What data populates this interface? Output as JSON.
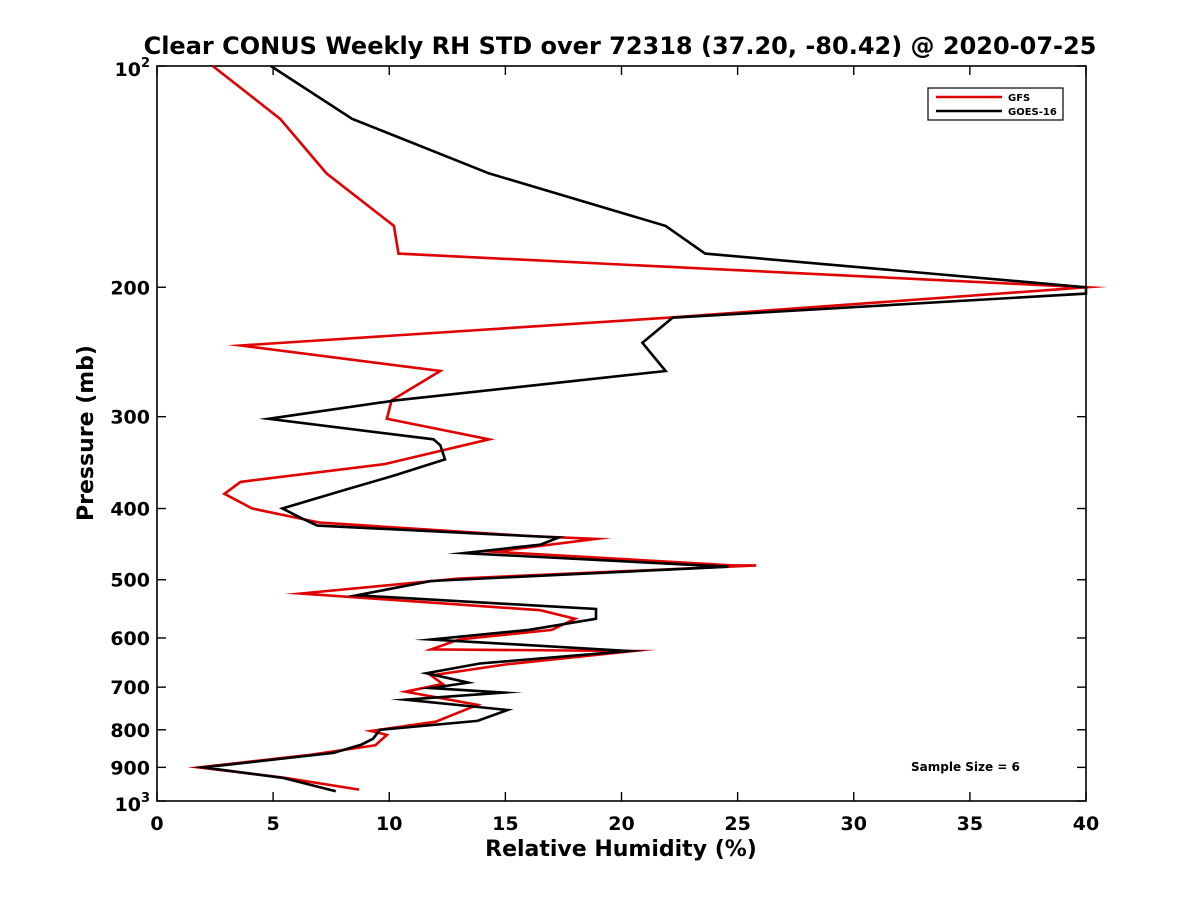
{
  "chart_data": {
    "type": "line",
    "title": "Clear CONUS Weekly RH STD over 72318 (37.20, -80.42) @ 2020-07-25",
    "xlabel": "Relative Humidity (%)",
    "ylabel": "Pressure (mb)",
    "xlim": [
      0,
      40
    ],
    "ylim": [
      100,
      1000
    ],
    "y_scale": "log",
    "y_reversed": true,
    "x_ticks": [
      "0",
      "5",
      "10",
      "15",
      "20",
      "25",
      "30",
      "35",
      "40"
    ],
    "y_ticks": [
      {
        "value": 100,
        "label": "10",
        "exp": "2"
      },
      {
        "value": 200,
        "label": "200"
      },
      {
        "value": 300,
        "label": "300"
      },
      {
        "value": 400,
        "label": "400"
      },
      {
        "value": 500,
        "label": "500"
      },
      {
        "value": 600,
        "label": "600"
      },
      {
        "value": 700,
        "label": "700"
      },
      {
        "value": 800,
        "label": "800"
      },
      {
        "value": 900,
        "label": "900"
      },
      {
        "value": 1000,
        "label": "10",
        "exp": "3"
      }
    ],
    "legend_position": "top-right",
    "grid": false,
    "annotation": "Sample Size = 6",
    "series": [
      {
        "name": "GFS",
        "color": "#e00000",
        "points": [
          [
            2.4,
            100
          ],
          [
            5.3,
            118
          ],
          [
            7.3,
            140
          ],
          [
            10.2,
            165
          ],
          [
            10.4,
            180
          ],
          [
            40,
            200
          ],
          [
            22,
            220
          ],
          [
            3.6,
            240
          ],
          [
            12.2,
            260
          ],
          [
            10.1,
            285
          ],
          [
            9.9,
            302
          ],
          [
            14.3,
            322
          ],
          [
            9.8,
            348
          ],
          [
            3.6,
            368
          ],
          [
            2.9,
            382
          ],
          [
            4.1,
            400
          ],
          [
            7.0,
            418
          ],
          [
            16.0,
            436
          ],
          [
            18.9,
            440
          ],
          [
            14.5,
            458
          ],
          [
            24.8,
            478
          ],
          [
            25.8,
            478
          ],
          [
            13.0,
            498
          ],
          [
            6.2,
            522
          ],
          [
            16.5,
            550
          ],
          [
            18.0,
            565
          ],
          [
            17.0,
            585
          ],
          [
            13.0,
            603
          ],
          [
            11.8,
            622
          ],
          [
            20.5,
            625
          ],
          [
            15.0,
            652
          ],
          [
            11.8,
            675
          ],
          [
            12.3,
            693
          ],
          [
            10.7,
            710
          ],
          [
            13.8,
            740
          ],
          [
            12.0,
            780
          ],
          [
            9.2,
            803
          ],
          [
            9.9,
            813
          ],
          [
            9.4,
            840
          ],
          [
            6.5,
            866
          ],
          [
            1.8,
            900
          ],
          [
            5.5,
            930
          ],
          [
            8.7,
            965
          ]
        ]
      },
      {
        "name": "GOES-16",
        "color": "#000000",
        "points": [
          [
            4.9,
            100
          ],
          [
            8.4,
            118
          ],
          [
            14.3,
            140
          ],
          [
            21.9,
            165
          ],
          [
            23.6,
            180
          ],
          [
            40,
            200
          ],
          [
            40,
            204
          ],
          [
            22.2,
            220
          ],
          [
            20.9,
            238
          ],
          [
            21.9,
            260
          ],
          [
            10.3,
            285
          ],
          [
            4.8,
            302
          ],
          [
            11.9,
            322
          ],
          [
            12.2,
            328
          ],
          [
            12.4,
            343
          ],
          [
            10.3,
            360
          ],
          [
            8.0,
            378
          ],
          [
            5.4,
            400
          ],
          [
            6.2,
            412
          ],
          [
            6.9,
            422
          ],
          [
            17.3,
            438
          ],
          [
            16.5,
            448
          ],
          [
            13.2,
            460
          ],
          [
            23.5,
            478
          ],
          [
            24.6,
            480
          ],
          [
            11.8,
            502
          ],
          [
            8.6,
            525
          ],
          [
            18.9,
            548
          ],
          [
            18.9,
            565
          ],
          [
            16.0,
            585
          ],
          [
            11.8,
            603
          ],
          [
            20.3,
            625
          ],
          [
            13.9,
            650
          ],
          [
            11.6,
            670
          ],
          [
            13.4,
            690
          ],
          [
            11.8,
            702
          ],
          [
            14.9,
            712
          ],
          [
            10.7,
            728
          ],
          [
            15.1,
            752
          ],
          [
            13.8,
            778
          ],
          [
            9.6,
            800
          ],
          [
            9.3,
            823
          ],
          [
            8.8,
            838
          ],
          [
            7.6,
            860
          ],
          [
            2.0,
            900
          ],
          [
            5.4,
            930
          ],
          [
            7.7,
            970
          ]
        ]
      }
    ]
  }
}
